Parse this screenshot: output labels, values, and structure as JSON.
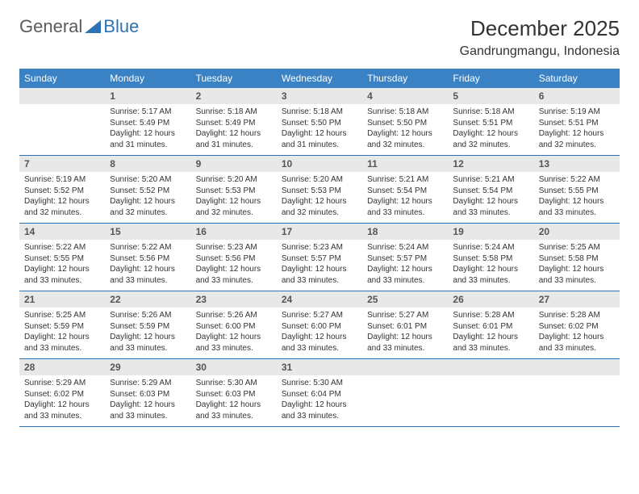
{
  "logo": {
    "part1": "General",
    "part2": "Blue"
  },
  "title": "December 2025",
  "location": "Gandrungmangu, Indonesia",
  "colors": {
    "header_bg": "#3a82c4",
    "header_text": "#ffffff",
    "daynum_bg": "#e8e8e8",
    "daynum_text": "#555555",
    "body_text": "#333333",
    "row_border": "#2d72b5",
    "logo_gray": "#5a5a5a",
    "logo_blue": "#2d72b5",
    "page_bg": "#ffffff"
  },
  "typography": {
    "title_fontsize": 26,
    "location_fontsize": 16,
    "header_fontsize": 12,
    "daynum_fontsize": 12,
    "data_fontsize": 10
  },
  "day_headers": [
    "Sunday",
    "Monday",
    "Tuesday",
    "Wednesday",
    "Thursday",
    "Friday",
    "Saturday"
  ],
  "weeks": [
    [
      {
        "num": "",
        "sunrise": "",
        "sunset": "",
        "daylight": ""
      },
      {
        "num": "1",
        "sunrise": "Sunrise: 5:17 AM",
        "sunset": "Sunset: 5:49 PM",
        "daylight": "Daylight: 12 hours and 31 minutes."
      },
      {
        "num": "2",
        "sunrise": "Sunrise: 5:18 AM",
        "sunset": "Sunset: 5:49 PM",
        "daylight": "Daylight: 12 hours and 31 minutes."
      },
      {
        "num": "3",
        "sunrise": "Sunrise: 5:18 AM",
        "sunset": "Sunset: 5:50 PM",
        "daylight": "Daylight: 12 hours and 31 minutes."
      },
      {
        "num": "4",
        "sunrise": "Sunrise: 5:18 AM",
        "sunset": "Sunset: 5:50 PM",
        "daylight": "Daylight: 12 hours and 32 minutes."
      },
      {
        "num": "5",
        "sunrise": "Sunrise: 5:18 AM",
        "sunset": "Sunset: 5:51 PM",
        "daylight": "Daylight: 12 hours and 32 minutes."
      },
      {
        "num": "6",
        "sunrise": "Sunrise: 5:19 AM",
        "sunset": "Sunset: 5:51 PM",
        "daylight": "Daylight: 12 hours and 32 minutes."
      }
    ],
    [
      {
        "num": "7",
        "sunrise": "Sunrise: 5:19 AM",
        "sunset": "Sunset: 5:52 PM",
        "daylight": "Daylight: 12 hours and 32 minutes."
      },
      {
        "num": "8",
        "sunrise": "Sunrise: 5:20 AM",
        "sunset": "Sunset: 5:52 PM",
        "daylight": "Daylight: 12 hours and 32 minutes."
      },
      {
        "num": "9",
        "sunrise": "Sunrise: 5:20 AM",
        "sunset": "Sunset: 5:53 PM",
        "daylight": "Daylight: 12 hours and 32 minutes."
      },
      {
        "num": "10",
        "sunrise": "Sunrise: 5:20 AM",
        "sunset": "Sunset: 5:53 PM",
        "daylight": "Daylight: 12 hours and 32 minutes."
      },
      {
        "num": "11",
        "sunrise": "Sunrise: 5:21 AM",
        "sunset": "Sunset: 5:54 PM",
        "daylight": "Daylight: 12 hours and 33 minutes."
      },
      {
        "num": "12",
        "sunrise": "Sunrise: 5:21 AM",
        "sunset": "Sunset: 5:54 PM",
        "daylight": "Daylight: 12 hours and 33 minutes."
      },
      {
        "num": "13",
        "sunrise": "Sunrise: 5:22 AM",
        "sunset": "Sunset: 5:55 PM",
        "daylight": "Daylight: 12 hours and 33 minutes."
      }
    ],
    [
      {
        "num": "14",
        "sunrise": "Sunrise: 5:22 AM",
        "sunset": "Sunset: 5:55 PM",
        "daylight": "Daylight: 12 hours and 33 minutes."
      },
      {
        "num": "15",
        "sunrise": "Sunrise: 5:22 AM",
        "sunset": "Sunset: 5:56 PM",
        "daylight": "Daylight: 12 hours and 33 minutes."
      },
      {
        "num": "16",
        "sunrise": "Sunrise: 5:23 AM",
        "sunset": "Sunset: 5:56 PM",
        "daylight": "Daylight: 12 hours and 33 minutes."
      },
      {
        "num": "17",
        "sunrise": "Sunrise: 5:23 AM",
        "sunset": "Sunset: 5:57 PM",
        "daylight": "Daylight: 12 hours and 33 minutes."
      },
      {
        "num": "18",
        "sunrise": "Sunrise: 5:24 AM",
        "sunset": "Sunset: 5:57 PM",
        "daylight": "Daylight: 12 hours and 33 minutes."
      },
      {
        "num": "19",
        "sunrise": "Sunrise: 5:24 AM",
        "sunset": "Sunset: 5:58 PM",
        "daylight": "Daylight: 12 hours and 33 minutes."
      },
      {
        "num": "20",
        "sunrise": "Sunrise: 5:25 AM",
        "sunset": "Sunset: 5:58 PM",
        "daylight": "Daylight: 12 hours and 33 minutes."
      }
    ],
    [
      {
        "num": "21",
        "sunrise": "Sunrise: 5:25 AM",
        "sunset": "Sunset: 5:59 PM",
        "daylight": "Daylight: 12 hours and 33 minutes."
      },
      {
        "num": "22",
        "sunrise": "Sunrise: 5:26 AM",
        "sunset": "Sunset: 5:59 PM",
        "daylight": "Daylight: 12 hours and 33 minutes."
      },
      {
        "num": "23",
        "sunrise": "Sunrise: 5:26 AM",
        "sunset": "Sunset: 6:00 PM",
        "daylight": "Daylight: 12 hours and 33 minutes."
      },
      {
        "num": "24",
        "sunrise": "Sunrise: 5:27 AM",
        "sunset": "Sunset: 6:00 PM",
        "daylight": "Daylight: 12 hours and 33 minutes."
      },
      {
        "num": "25",
        "sunrise": "Sunrise: 5:27 AM",
        "sunset": "Sunset: 6:01 PM",
        "daylight": "Daylight: 12 hours and 33 minutes."
      },
      {
        "num": "26",
        "sunrise": "Sunrise: 5:28 AM",
        "sunset": "Sunset: 6:01 PM",
        "daylight": "Daylight: 12 hours and 33 minutes."
      },
      {
        "num": "27",
        "sunrise": "Sunrise: 5:28 AM",
        "sunset": "Sunset: 6:02 PM",
        "daylight": "Daylight: 12 hours and 33 minutes."
      }
    ],
    [
      {
        "num": "28",
        "sunrise": "Sunrise: 5:29 AM",
        "sunset": "Sunset: 6:02 PM",
        "daylight": "Daylight: 12 hours and 33 minutes."
      },
      {
        "num": "29",
        "sunrise": "Sunrise: 5:29 AM",
        "sunset": "Sunset: 6:03 PM",
        "daylight": "Daylight: 12 hours and 33 minutes."
      },
      {
        "num": "30",
        "sunrise": "Sunrise: 5:30 AM",
        "sunset": "Sunset: 6:03 PM",
        "daylight": "Daylight: 12 hours and 33 minutes."
      },
      {
        "num": "31",
        "sunrise": "Sunrise: 5:30 AM",
        "sunset": "Sunset: 6:04 PM",
        "daylight": "Daylight: 12 hours and 33 minutes."
      },
      {
        "num": "",
        "sunrise": "",
        "sunset": "",
        "daylight": ""
      },
      {
        "num": "",
        "sunrise": "",
        "sunset": "",
        "daylight": ""
      },
      {
        "num": "",
        "sunrise": "",
        "sunset": "",
        "daylight": ""
      }
    ]
  ]
}
